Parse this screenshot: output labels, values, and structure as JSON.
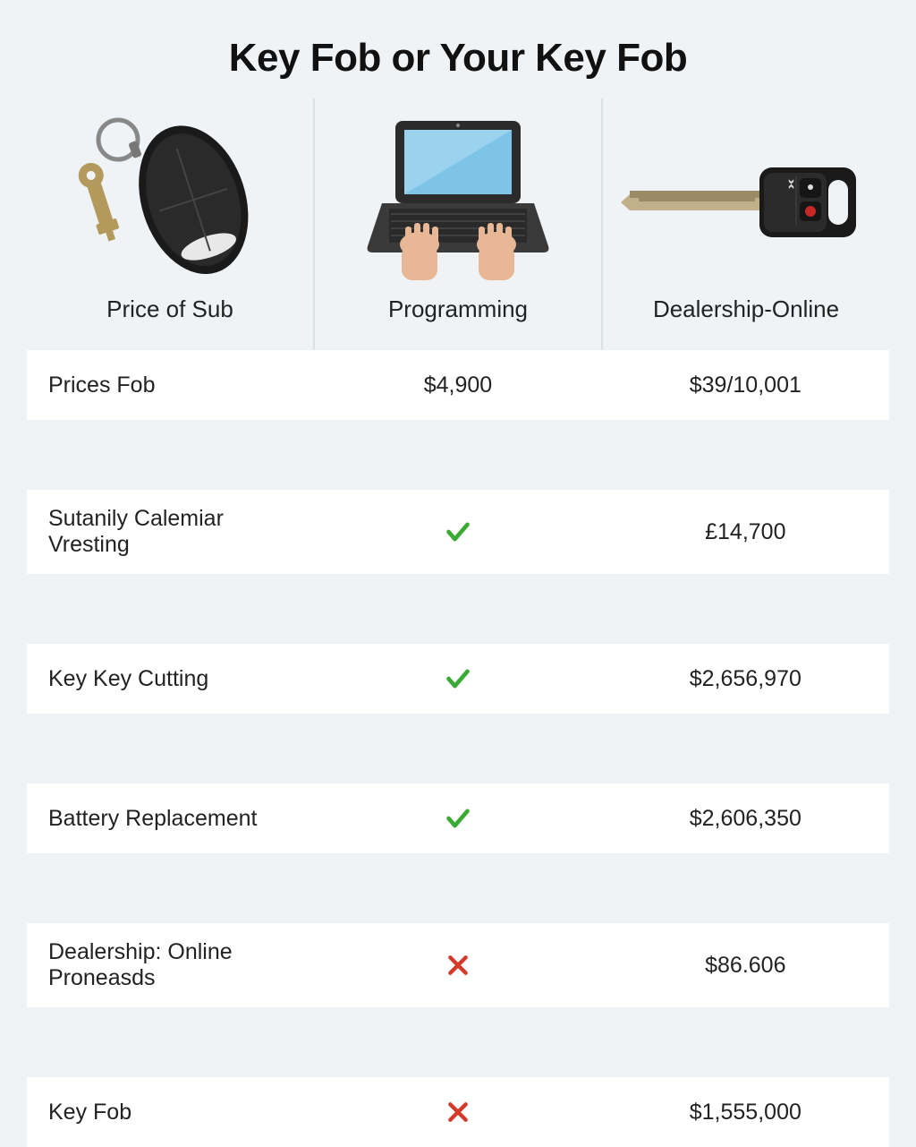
{
  "title": "Key Fob or Your Key Fob",
  "columns": [
    {
      "label": "Price of Sub",
      "icon": "keyfob"
    },
    {
      "label": "Programming",
      "icon": "laptop"
    },
    {
      "label": "Dealership-Online",
      "icon": "key"
    }
  ],
  "rows": [
    {
      "label": "Prices Fob",
      "col1": {
        "type": "text",
        "value": "$4,900"
      },
      "col2": {
        "type": "text",
        "value": "$39/10,001"
      }
    },
    {
      "label": "Sutanily Calemiar Vresting",
      "col1": {
        "type": "check"
      },
      "col2": {
        "type": "text",
        "value": "£14,700"
      }
    },
    {
      "label": "Key Key Cutting",
      "col1": {
        "type": "check"
      },
      "col2": {
        "type": "text",
        "value": "$2,656,970"
      }
    },
    {
      "label": "Battery Replacement",
      "col1": {
        "type": "check"
      },
      "col2": {
        "type": "text",
        "value": "$2,606,350"
      }
    },
    {
      "label": "Dealership: Online Proneasds",
      "col1": {
        "type": "cross"
      },
      "col2": {
        "type": "text",
        "value": "$86.606"
      }
    },
    {
      "label": "Key Fob",
      "col1": {
        "type": "cross"
      },
      "col2": {
        "type": "text",
        "value": "$1,555,000"
      }
    }
  ],
  "colors": {
    "check": "#3aaa35",
    "cross": "#d23a2a",
    "bg": "#f0f3f5",
    "rowBg": "#ffffff",
    "divider": "#d9e1e4",
    "text": "#222222"
  }
}
